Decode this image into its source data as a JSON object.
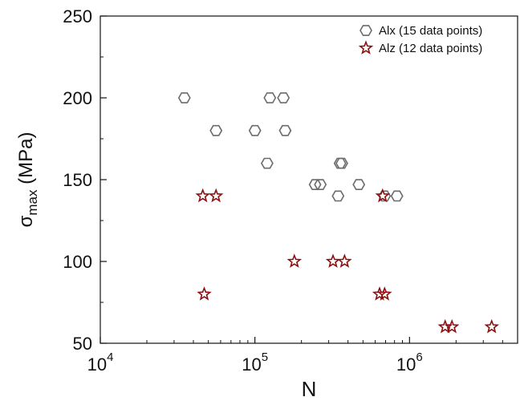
{
  "chart_data": {
    "type": "scatter",
    "xlabel": "N",
    "ylabel": {
      "main": "σ",
      "sub": "max",
      "unit": " (MPa)"
    },
    "x_scale": "log",
    "xlim": [
      10000,
      5000000
    ],
    "ylim": [
      50,
      250
    ],
    "x_major_ticks": [
      {
        "value": 10000,
        "base": "10",
        "exp": "4"
      },
      {
        "value": 100000,
        "base": "10",
        "exp": "5"
      },
      {
        "value": 1000000,
        "base": "10",
        "exp": "6"
      }
    ],
    "y_ticks": [
      {
        "value": 50,
        "label": "50"
      },
      {
        "value": 100,
        "label": "100"
      },
      {
        "value": 150,
        "label": "150"
      },
      {
        "value": 200,
        "label": "200"
      },
      {
        "value": 250,
        "label": "250"
      }
    ],
    "grid": false,
    "legend_position": "top-right",
    "series": [
      {
        "name": "Alx (15 data points)",
        "marker": "hexagon",
        "color": "#6b6b6b",
        "points": [
          {
            "x": 35000,
            "y": 200
          },
          {
            "x": 56000,
            "y": 180
          },
          {
            "x": 100000,
            "y": 180
          },
          {
            "x": 120000,
            "y": 160
          },
          {
            "x": 125000,
            "y": 200
          },
          {
            "x": 153000,
            "y": 200
          },
          {
            "x": 157000,
            "y": 180
          },
          {
            "x": 245000,
            "y": 147
          },
          {
            "x": 265000,
            "y": 147
          },
          {
            "x": 345000,
            "y": 140
          },
          {
            "x": 355000,
            "y": 160
          },
          {
            "x": 365000,
            "y": 160
          },
          {
            "x": 470000,
            "y": 147
          },
          {
            "x": 690000,
            "y": 140
          },
          {
            "x": 830000,
            "y": 140
          }
        ]
      },
      {
        "name": "Alz (12 data points)",
        "marker": "star",
        "color": "#8b1010",
        "points": [
          {
            "x": 46000,
            "y": 140
          },
          {
            "x": 56000,
            "y": 140
          },
          {
            "x": 47000,
            "y": 80
          },
          {
            "x": 180000,
            "y": 100
          },
          {
            "x": 320000,
            "y": 100
          },
          {
            "x": 380000,
            "y": 100
          },
          {
            "x": 670000,
            "y": 140
          },
          {
            "x": 640000,
            "y": 80
          },
          {
            "x": 690000,
            "y": 80
          },
          {
            "x": 1700000,
            "y": 60
          },
          {
            "x": 1880000,
            "y": 60
          },
          {
            "x": 3400000,
            "y": 60
          }
        ]
      }
    ]
  }
}
